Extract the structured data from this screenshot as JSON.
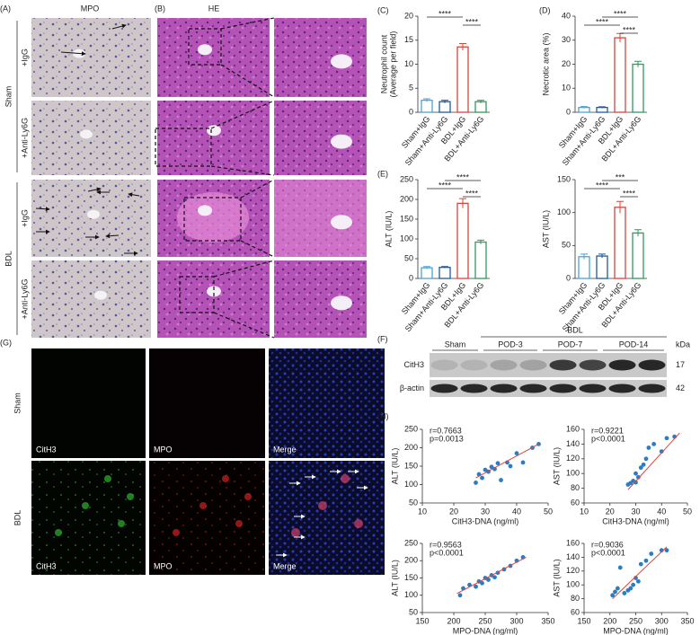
{
  "figure": {
    "A": {
      "label": "(A)",
      "title": "MPO"
    },
    "B": {
      "label": "(B)",
      "title": "HE"
    },
    "groups": [
      {
        "name": "Sham",
        "rows": [
          "+IgG",
          "+Anti-Ly6G"
        ]
      },
      {
        "name": "BDL",
        "rows": [
          "+IgG",
          "+Anti-Ly6G"
        ]
      }
    ],
    "F": {
      "label": "(F)",
      "group": "BDL",
      "lanes": [
        "Sham",
        "POD-3",
        "POD-7",
        "POD-14"
      ],
      "unit": "kDa",
      "rows": [
        {
          "name": "CitH3",
          "size": 17
        },
        {
          "name": "β-actin",
          "size": 42
        }
      ]
    },
    "G": {
      "label": "(G)",
      "rows": [
        "Sham",
        "BDL"
      ],
      "channels": [
        "CitH3",
        "MPO",
        "Merge"
      ]
    }
  },
  "chart_data": [
    {
      "type": "bar",
      "label": "(C)",
      "ylabel": [
        "Neutrophil count",
        "(Average per field)"
      ],
      "categories": [
        "Sham+IgG",
        "Sham+Anti-Ly6G",
        "BDL+IgG",
        "BDL+Anti-Ly6G"
      ],
      "values": [
        2.5,
        2.2,
        13.6,
        2.2
      ],
      "errors": [
        0.3,
        0.3,
        0.7,
        0.3
      ],
      "colors": [
        "#4ba3d6",
        "#1c5a9c",
        "#d9443b",
        "#2f9a5c"
      ],
      "ylim": [
        0,
        20
      ],
      "yticks": [
        0,
        5,
        10,
        15,
        20
      ],
      "annotations": [
        {
          "text": "****",
          "from": 0,
          "to": 2
        },
        {
          "text": "****",
          "from": 2,
          "to": 3
        }
      ]
    },
    {
      "type": "bar",
      "label": "(D)",
      "ylabel": [
        "Necrotic area (%)"
      ],
      "categories": [
        "Sham+IgG",
        "Sham+Anti-Ly6G",
        "BDL+IgG",
        "BDL+Anti-Ly6G"
      ],
      "values": [
        2,
        2,
        31,
        20
      ],
      "errors": [
        0.4,
        0.3,
        1.8,
        1.2
      ],
      "colors": [
        "#4ba3d6",
        "#1c5a9c",
        "#d9443b",
        "#2f9a5c"
      ],
      "ylim": [
        0,
        40
      ],
      "yticks": [
        0,
        10,
        20,
        30,
        40
      ],
      "annotations": [
        {
          "text": "****",
          "from": 1,
          "to": 3
        },
        {
          "text": "****",
          "from": 0,
          "to": 2
        },
        {
          "text": "****",
          "from": 2,
          "to": 3
        }
      ]
    },
    {
      "type": "bar",
      "label": "(E)",
      "ylabel": [
        "ALT (IU/L)"
      ],
      "categories": [
        "Sham+IgG",
        "Sham+Anti-Ly6G",
        "BDL+IgG",
        "BDL+Anti-Ly6G"
      ],
      "values": [
        27,
        28,
        190,
        92
      ],
      "errors": [
        3,
        2,
        12,
        5
      ],
      "colors": [
        "#4ba3d6",
        "#1c5a9c",
        "#d9443b",
        "#2f9a5c"
      ],
      "ylim": [
        0,
        250
      ],
      "yticks": [
        0,
        50,
        100,
        150,
        200,
        250
      ],
      "annotations": [
        {
          "text": "****",
          "from": 1,
          "to": 3
        },
        {
          "text": "****",
          "from": 0,
          "to": 2
        },
        {
          "text": "****",
          "from": 2,
          "to": 3
        }
      ]
    },
    {
      "type": "bar",
      "ylabel": [
        "AST (IU/L)"
      ],
      "categories": [
        "Sham+IgG",
        "Sham+Anti-Ly6G",
        "BDL+IgG",
        "BDL+Anti-Ly6G"
      ],
      "values": [
        33,
        34,
        108,
        69
      ],
      "errors": [
        4,
        3,
        9,
        5
      ],
      "colors": [
        "#4ba3d6",
        "#1c5a9c",
        "#d9443b",
        "#2f9a5c"
      ],
      "ylim": [
        0,
        150
      ],
      "yticks": [
        0,
        50,
        100,
        150
      ],
      "annotations": [
        {
          "text": "***",
          "from": 1,
          "to": 3
        },
        {
          "text": "****",
          "from": 0,
          "to": 2
        },
        {
          "text": "****",
          "from": 2,
          "to": 3
        }
      ]
    },
    {
      "type": "scatter",
      "label": "(H)",
      "xlabel": "CitH3-DNA (ng/ml)",
      "ylabel": "ALT (IU/L)",
      "stats": [
        "r=0.7663",
        "p=0.0013"
      ],
      "x": [
        27,
        28,
        29,
        30,
        31,
        32,
        33,
        34,
        35,
        37,
        38,
        40,
        42,
        45,
        47
      ],
      "y": [
        105,
        128,
        118,
        140,
        135,
        148,
        142,
        158,
        112,
        160,
        150,
        185,
        160,
        200,
        210
      ],
      "fit_x": [
        27,
        47
      ],
      "fit_y": [
        118,
        210
      ],
      "color": "#2b7cc1",
      "fit_color": "#e0453a",
      "xlim": [
        10,
        50
      ],
      "xticks": [
        10,
        20,
        30,
        40,
        50
      ],
      "ylim": [
        50,
        250
      ],
      "yticks": [
        50,
        100,
        150,
        200,
        250
      ]
    },
    {
      "type": "scatter",
      "xlabel": "CitH3-DNA (ng/ml)",
      "ylabel": "AST (IU/L)",
      "stats": [
        "r=0.9221",
        "p<0.0001"
      ],
      "x": [
        27,
        28,
        29,
        30,
        30,
        31,
        32,
        33,
        34,
        35,
        37,
        40,
        42,
        45
      ],
      "y": [
        85,
        87,
        90,
        88,
        100,
        95,
        108,
        112,
        120,
        135,
        140,
        130,
        148,
        150
      ],
      "fit_x": [
        27,
        47
      ],
      "fit_y": [
        78,
        155
      ],
      "color": "#2b7cc1",
      "fit_color": "#e0453a",
      "xlim": [
        10,
        50
      ],
      "xticks": [
        10,
        20,
        30,
        40,
        50
      ],
      "ylim": [
        60,
        160
      ],
      "yticks": [
        60,
        80,
        100,
        120,
        140,
        160
      ]
    },
    {
      "type": "scatter",
      "xlabel": "MPO-DNA (ng/ml)",
      "ylabel": "ALT (IU/L)",
      "stats": [
        "r=0.9563",
        "p<0.0001"
      ],
      "x": [
        210,
        215,
        225,
        235,
        240,
        245,
        250,
        255,
        260,
        265,
        270,
        280,
        290,
        300,
        310
      ],
      "y": [
        100,
        120,
        130,
        125,
        140,
        135,
        150,
        145,
        158,
        152,
        165,
        175,
        185,
        200,
        210
      ],
      "fit_x": [
        205,
        315
      ],
      "fit_y": [
        105,
        210
      ],
      "color": "#2b7cc1",
      "fit_color": "#e0453a",
      "xlim": [
        150,
        350
      ],
      "xticks": [
        150,
        200,
        250,
        300,
        350
      ],
      "ylim": [
        50,
        250
      ],
      "yticks": [
        50,
        100,
        150,
        200,
        250
      ]
    },
    {
      "type": "scatter",
      "xlabel": "MPO-DNA (ng/ml)",
      "ylabel": "AST (IU/L)",
      "stats": [
        "r=0.9036",
        "p<0.0001"
      ],
      "x": [
        205,
        210,
        215,
        220,
        228,
        235,
        240,
        245,
        250,
        255,
        260,
        270,
        280,
        300,
        310
      ],
      "y": [
        85,
        90,
        95,
        125,
        88,
        92,
        95,
        100,
        110,
        105,
        130,
        135,
        145,
        150,
        150
      ],
      "fit_x": [
        205,
        310
      ],
      "fit_y": [
        80,
        155
      ],
      "color": "#2b7cc1",
      "fit_color": "#e0453a",
      "xlim": [
        150,
        350
      ],
      "xticks": [
        150,
        200,
        250,
        300,
        350
      ],
      "ylim": [
        60,
        160
      ],
      "yticks": [
        60,
        80,
        100,
        120,
        140,
        160
      ]
    }
  ]
}
